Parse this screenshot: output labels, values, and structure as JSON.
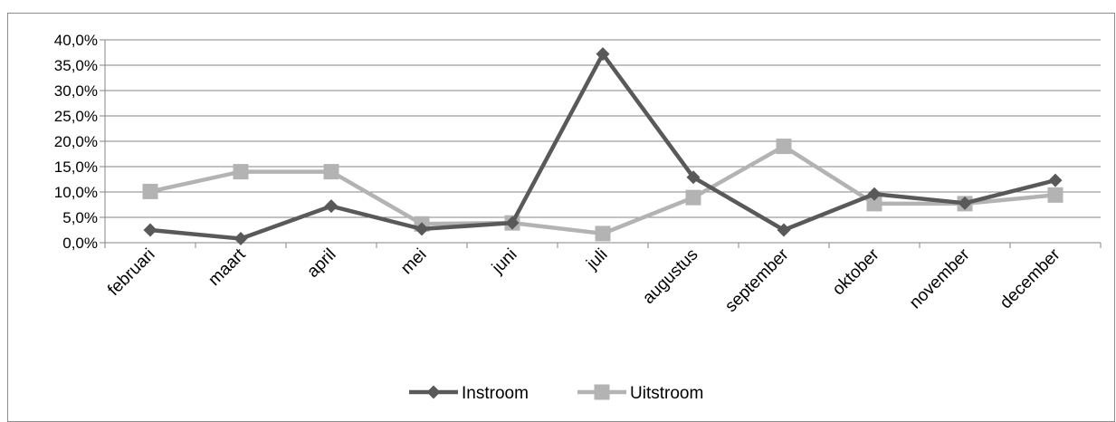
{
  "chart_data": {
    "type": "line",
    "categories": [
      "februari",
      "maart",
      "april",
      "mei",
      "juni",
      "juli",
      "augustus",
      "september",
      "oktober",
      "november",
      "december"
    ],
    "series": [
      {
        "name": "Instroom",
        "values": [
          2.5,
          0.8,
          7.2,
          2.7,
          3.9,
          37.2,
          12.9,
          2.5,
          9.6,
          7.8,
          12.3
        ],
        "color": "#595959",
        "marker": "diamond"
      },
      {
        "name": "Uitstroom",
        "values": [
          10.1,
          14.0,
          14.0,
          3.7,
          3.9,
          1.8,
          8.9,
          19.0,
          7.7,
          7.7,
          9.4
        ],
        "color": "#b3b3b3",
        "marker": "square"
      }
    ],
    "yticks": [
      "0,0%",
      "5,0%",
      "10,0%",
      "15,0%",
      "20,0%",
      "25,0%",
      "30,0%",
      "35,0%",
      "40,0%"
    ],
    "ylim": [
      0,
      40
    ],
    "title": "",
    "xlabel": "",
    "ylabel": "",
    "grid": true,
    "legend_position": "bottom"
  }
}
